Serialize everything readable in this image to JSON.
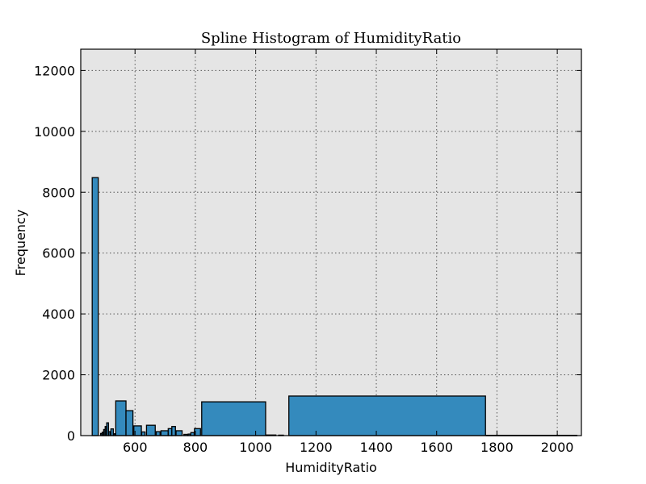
{
  "chart_data": {
    "type": "bar",
    "title": "Spline Histogram of HumidityRatio",
    "xlabel": "HumidityRatio",
    "ylabel": "Frequency",
    "xlim": [
      420,
      2080
    ],
    "ylim": [
      0,
      12700
    ],
    "xticks": [
      600,
      800,
      1000,
      1200,
      1400,
      1600,
      1800,
      2000
    ],
    "yticks": [
      0,
      2000,
      4000,
      6000,
      8000,
      10000,
      12000
    ],
    "grid": true,
    "colors": {
      "bar": "#348ABD",
      "plot_bg": "#E5E5E5",
      "edge": "#000000"
    },
    "bins": [
      {
        "x0": 458,
        "x1": 478,
        "value": 8480
      },
      {
        "x0": 486,
        "x1": 490,
        "value": 70
      },
      {
        "x0": 491,
        "x1": 495,
        "value": 110
      },
      {
        "x0": 496,
        "x1": 500,
        "value": 200
      },
      {
        "x0": 501,
        "x1": 505,
        "value": 300
      },
      {
        "x0": 506,
        "x1": 512,
        "value": 420
      },
      {
        "x0": 513,
        "x1": 518,
        "value": 130
      },
      {
        "x0": 520,
        "x1": 528,
        "value": 220
      },
      {
        "x0": 530,
        "x1": 534,
        "value": 60
      },
      {
        "x0": 536,
        "x1": 570,
        "value": 1140
      },
      {
        "x0": 570,
        "x1": 593,
        "value": 820
      },
      {
        "x0": 596,
        "x1": 621,
        "value": 320
      },
      {
        "x0": 622,
        "x1": 633,
        "value": 120
      },
      {
        "x0": 638,
        "x1": 667,
        "value": 340
      },
      {
        "x0": 670,
        "x1": 683,
        "value": 130
      },
      {
        "x0": 686,
        "x1": 710,
        "value": 160
      },
      {
        "x0": 710,
        "x1": 722,
        "value": 230
      },
      {
        "x0": 722,
        "x1": 734,
        "value": 300
      },
      {
        "x0": 736,
        "x1": 756,
        "value": 160
      },
      {
        "x0": 762,
        "x1": 775,
        "value": 40
      },
      {
        "x0": 776,
        "x1": 783,
        "value": 50
      },
      {
        "x0": 785,
        "x1": 796,
        "value": 100
      },
      {
        "x0": 797,
        "x1": 817,
        "value": 230
      },
      {
        "x0": 821,
        "x1": 1033,
        "value": 1110
      },
      {
        "x0": 1035,
        "x1": 1067,
        "value": 20
      },
      {
        "x0": 1076,
        "x1": 1092,
        "value": 15
      },
      {
        "x0": 1110,
        "x1": 1762,
        "value": 1300
      },
      {
        "x0": 1765,
        "x1": 2065,
        "value": 10
      }
    ]
  }
}
